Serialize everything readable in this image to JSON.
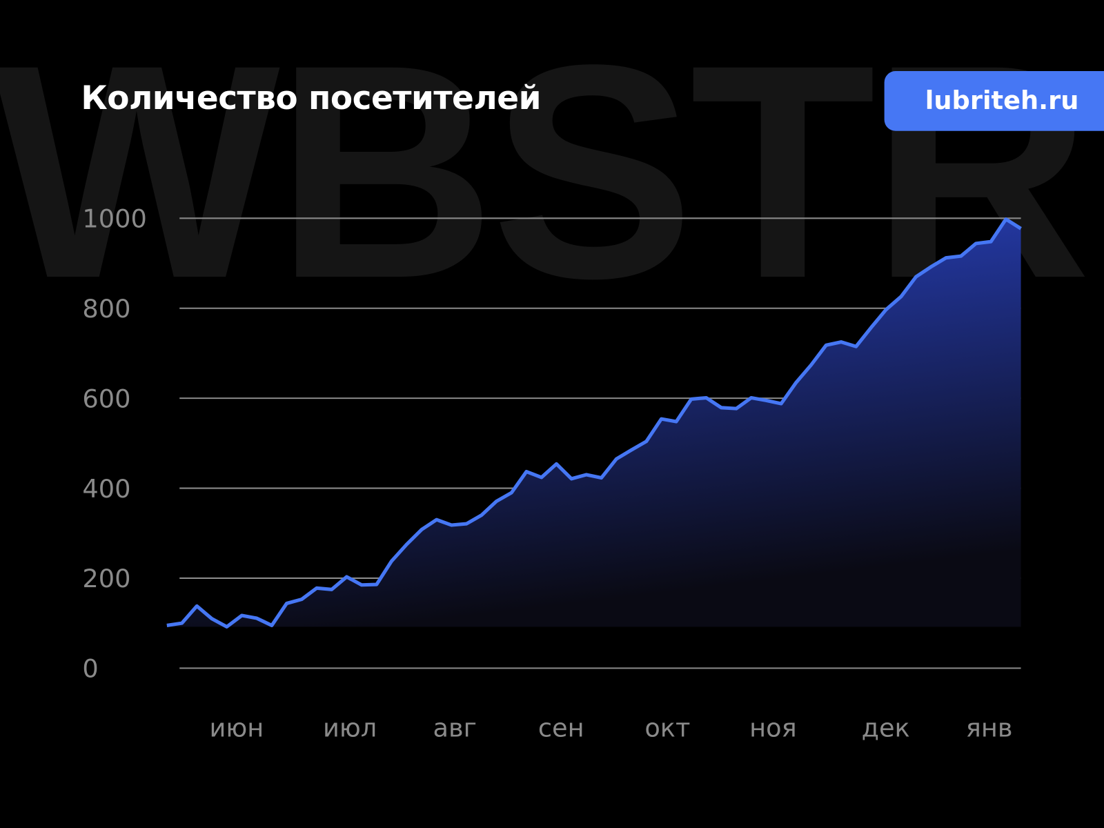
{
  "header": {
    "title": "Количество посетителей",
    "badge": "lubriteh.ru",
    "watermark": "WBSTR"
  },
  "colors": {
    "line": "#4677f4",
    "fill_top": "#2a44c8",
    "fill_bottom": "#0a0a14",
    "grid": "#8a8a8a",
    "badge": "#4677f4"
  },
  "chart_data": {
    "type": "area",
    "title": "Количество посетителей",
    "xlabel": "",
    "ylabel": "",
    "ylim": [
      0,
      1000
    ],
    "yticks": [
      0,
      200,
      400,
      600,
      800,
      1000
    ],
    "xticks": [
      "июн",
      "июл",
      "авг",
      "сен",
      "окт",
      "ноя",
      "дек",
      "янв"
    ],
    "grid": true,
    "values": [
      95,
      100,
      138,
      110,
      92,
      117,
      111,
      95,
      144,
      153,
      178,
      175,
      203,
      185,
      186,
      238,
      275,
      308,
      330,
      318,
      321,
      340,
      371,
      390,
      437,
      424,
      454,
      421,
      430,
      423,
      465,
      485,
      504,
      554,
      548,
      598,
      601,
      579,
      577,
      601,
      595,
      588,
      635,
      674,
      718,
      725,
      715,
      757,
      797,
      826,
      870,
      892,
      912,
      916,
      944,
      948,
      998,
      977
    ]
  }
}
